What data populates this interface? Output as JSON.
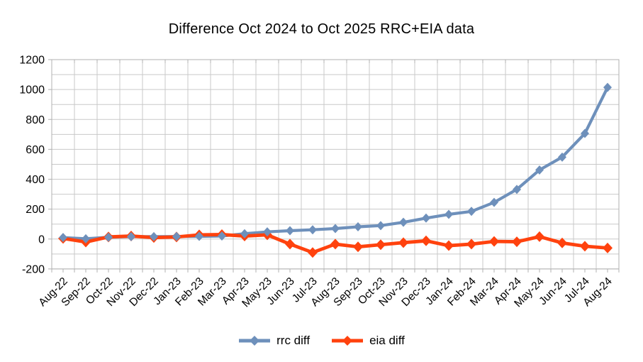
{
  "chart_data": {
    "type": "line",
    "title": "Difference Oct 2024 to Oct 2025 RRC+EIA data",
    "categories": [
      "Aug-22",
      "Sep-22",
      "Oct-22",
      "Nov-22",
      "Dec-22",
      "Jan-23",
      "Feb-23",
      "Mar-23",
      "Apr-23",
      "May-23",
      "Jun-23",
      "Jul-23",
      "Aug-23",
      "Sep-23",
      "Oct-23",
      "Nov-23",
      "Dec-23",
      "Jan-24",
      "Feb-24",
      "Mar-24",
      "Apr-24",
      "May-24",
      "Jun-24",
      "Jul-24",
      "Aug-24"
    ],
    "series": [
      {
        "name": "rrc diff",
        "color": "#6e90bb",
        "marker": "diamond",
        "values": [
          10,
          2,
          12,
          16,
          16,
          17,
          18,
          20,
          36,
          48,
          56,
          62,
          70,
          82,
          90,
          112,
          140,
          165,
          185,
          245,
          332,
          462,
          548,
          706,
          1014
        ]
      },
      {
        "name": "eia diff",
        "color": "#ff420e",
        "marker": "diamond",
        "values": [
          4,
          -20,
          14,
          20,
          10,
          14,
          28,
          30,
          20,
          28,
          -34,
          -90,
          -34,
          -52,
          -38,
          -24,
          -12,
          -44,
          -34,
          -16,
          -18,
          16,
          -26,
          -48,
          -60
        ]
      }
    ],
    "xlabel": "",
    "ylabel": "",
    "ylim": [
      -200,
      1200
    ],
    "y_minor_step": 100,
    "y_label_step": 200,
    "y_tick_labels": [
      "1200",
      "1000",
      "800",
      "600",
      "400",
      "200",
      "0",
      "-200"
    ],
    "grid": true,
    "grid_color": "#c9c9c9",
    "axis_color": "#b1b1b1",
    "tick_label_color": "#000000",
    "legend_position": "bottom"
  }
}
